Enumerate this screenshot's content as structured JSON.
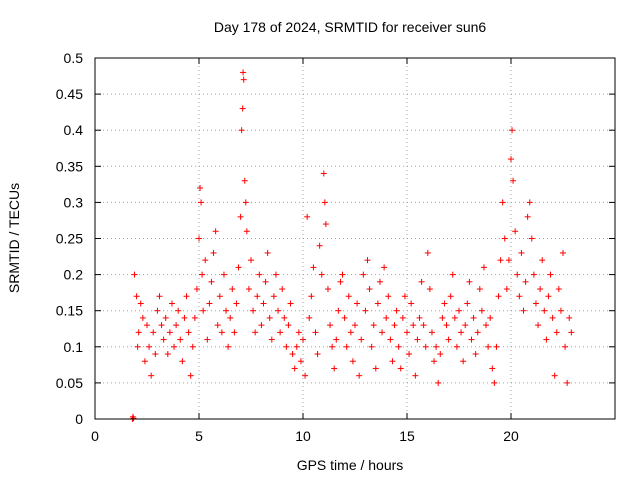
{
  "chart_data": {
    "type": "scatter",
    "title": "Day 178 of 2024, SRMTID for receiver sun6",
    "xlabel": "GPS time / hours",
    "ylabel": "SRMTID / TECUs",
    "xlim": [
      0,
      25
    ],
    "ylim": [
      0,
      0.5
    ],
    "xticks": [
      0,
      5,
      10,
      15,
      20
    ],
    "yticks": [
      0,
      0.05,
      0.1,
      0.15,
      0.2,
      0.25,
      0.3,
      0.35,
      0.4,
      0.45,
      0.5
    ],
    "xtick_labels": [
      "0",
      "5",
      "10",
      "15",
      "20"
    ],
    "ytick_labels": [
      "0",
      "0.05",
      "0.1",
      "0.15",
      "0.2",
      "0.25",
      "0.3",
      "0.35",
      "0.4",
      "0.45",
      "0.5"
    ],
    "grid": true,
    "series": [
      {
        "name": "SRMTID",
        "marker": "+",
        "color": "#ff0000",
        "points": [
          [
            1.8,
            0.0
          ],
          [
            1.82,
            0.003
          ],
          [
            1.85,
            0.001
          ],
          [
            1.9,
            0.2
          ],
          [
            2.0,
            0.17
          ],
          [
            2.05,
            0.1
          ],
          [
            2.1,
            0.12
          ],
          [
            2.2,
            0.16
          ],
          [
            2.3,
            0.14
          ],
          [
            2.4,
            0.08
          ],
          [
            2.5,
            0.13
          ],
          [
            2.6,
            0.1
          ],
          [
            2.7,
            0.06
          ],
          [
            2.8,
            0.12
          ],
          [
            2.9,
            0.09
          ],
          [
            3.0,
            0.15
          ],
          [
            3.1,
            0.17
          ],
          [
            3.2,
            0.13
          ],
          [
            3.3,
            0.11
          ],
          [
            3.4,
            0.14
          ],
          [
            3.5,
            0.09
          ],
          [
            3.6,
            0.12
          ],
          [
            3.7,
            0.16
          ],
          [
            3.8,
            0.1
          ],
          [
            3.9,
            0.13
          ],
          [
            4.0,
            0.15
          ],
          [
            4.1,
            0.11
          ],
          [
            4.2,
            0.08
          ],
          [
            4.3,
            0.14
          ],
          [
            4.4,
            0.17
          ],
          [
            4.5,
            0.12
          ],
          [
            4.6,
            0.06
          ],
          [
            4.7,
            0.1
          ],
          [
            4.8,
            0.14
          ],
          [
            4.9,
            0.18
          ],
          [
            5.0,
            0.25
          ],
          [
            5.05,
            0.32
          ],
          [
            5.1,
            0.3
          ],
          [
            5.15,
            0.2
          ],
          [
            5.2,
            0.15
          ],
          [
            5.3,
            0.22
          ],
          [
            5.4,
            0.11
          ],
          [
            5.5,
            0.16
          ],
          [
            5.6,
            0.19
          ],
          [
            5.7,
            0.23
          ],
          [
            5.8,
            0.26
          ],
          [
            5.9,
            0.13
          ],
          [
            6.0,
            0.17
          ],
          [
            6.1,
            0.12
          ],
          [
            6.2,
            0.2
          ],
          [
            6.3,
            0.15
          ],
          [
            6.4,
            0.1
          ],
          [
            6.5,
            0.14
          ],
          [
            6.6,
            0.18
          ],
          [
            6.7,
            0.12
          ],
          [
            6.8,
            0.16
          ],
          [
            6.9,
            0.21
          ],
          [
            7.0,
            0.28
          ],
          [
            7.05,
            0.4
          ],
          [
            7.1,
            0.43
          ],
          [
            7.12,
            0.48
          ],
          [
            7.15,
            0.47
          ],
          [
            7.2,
            0.33
          ],
          [
            7.25,
            0.3
          ],
          [
            7.3,
            0.26
          ],
          [
            7.4,
            0.18
          ],
          [
            7.5,
            0.22
          ],
          [
            7.6,
            0.15
          ],
          [
            7.7,
            0.12
          ],
          [
            7.8,
            0.17
          ],
          [
            7.9,
            0.2
          ],
          [
            8.0,
            0.13
          ],
          [
            8.1,
            0.16
          ],
          [
            8.2,
            0.19
          ],
          [
            8.3,
            0.23
          ],
          [
            8.4,
            0.14
          ],
          [
            8.5,
            0.11
          ],
          [
            8.6,
            0.17
          ],
          [
            8.7,
            0.2
          ],
          [
            8.8,
            0.15
          ],
          [
            8.9,
            0.12
          ],
          [
            9.0,
            0.18
          ],
          [
            9.1,
            0.14
          ],
          [
            9.2,
            0.1
          ],
          [
            9.3,
            0.13
          ],
          [
            9.4,
            0.16
          ],
          [
            9.5,
            0.09
          ],
          [
            9.6,
            0.07
          ],
          [
            9.7,
            0.1
          ],
          [
            9.8,
            0.12
          ],
          [
            9.9,
            0.08
          ],
          [
            10.0,
            0.11
          ],
          [
            10.1,
            0.06
          ],
          [
            10.2,
            0.28
          ],
          [
            10.3,
            0.14
          ],
          [
            10.4,
            0.17
          ],
          [
            10.5,
            0.21
          ],
          [
            10.6,
            0.12
          ],
          [
            10.7,
            0.09
          ],
          [
            10.8,
            0.24
          ],
          [
            10.9,
            0.2
          ],
          [
            11.0,
            0.34
          ],
          [
            11.05,
            0.3
          ],
          [
            11.1,
            0.27
          ],
          [
            11.2,
            0.18
          ],
          [
            11.3,
            0.13
          ],
          [
            11.4,
            0.1
          ],
          [
            11.5,
            0.07
          ],
          [
            11.6,
            0.11
          ],
          [
            11.7,
            0.15
          ],
          [
            11.8,
            0.19
          ],
          [
            11.9,
            0.2
          ],
          [
            12.0,
            0.14
          ],
          [
            12.1,
            0.1
          ],
          [
            12.2,
            0.17
          ],
          [
            12.3,
            0.12
          ],
          [
            12.4,
            0.08
          ],
          [
            12.5,
            0.13
          ],
          [
            12.6,
            0.16
          ],
          [
            12.7,
            0.06
          ],
          [
            12.8,
            0.11
          ],
          [
            12.9,
            0.2
          ],
          [
            13.0,
            0.15
          ],
          [
            13.1,
            0.22
          ],
          [
            13.2,
            0.18
          ],
          [
            13.3,
            0.1
          ],
          [
            13.4,
            0.13
          ],
          [
            13.5,
            0.07
          ],
          [
            13.6,
            0.16
          ],
          [
            13.7,
            0.19
          ],
          [
            13.8,
            0.12
          ],
          [
            13.9,
            0.21
          ],
          [
            14.0,
            0.14
          ],
          [
            14.1,
            0.17
          ],
          [
            14.2,
            0.11
          ],
          [
            14.3,
            0.08
          ],
          [
            14.4,
            0.13
          ],
          [
            14.5,
            0.15
          ],
          [
            14.6,
            0.1
          ],
          [
            14.7,
            0.07
          ],
          [
            14.8,
            0.14
          ],
          [
            14.9,
            0.17
          ],
          [
            15.0,
            0.12
          ],
          [
            15.1,
            0.09
          ],
          [
            15.2,
            0.16
          ],
          [
            15.3,
            0.13
          ],
          [
            15.4,
            0.06
          ],
          [
            15.5,
            0.11
          ],
          [
            15.6,
            0.14
          ],
          [
            15.7,
            0.19
          ],
          [
            15.8,
            0.13
          ],
          [
            15.9,
            0.1
          ],
          [
            16.0,
            0.23
          ],
          [
            16.1,
            0.18
          ],
          [
            16.2,
            0.12
          ],
          [
            16.3,
            0.08
          ],
          [
            16.4,
            0.1
          ],
          [
            16.5,
            0.05
          ],
          [
            16.6,
            0.09
          ],
          [
            16.7,
            0.14
          ],
          [
            16.8,
            0.16
          ],
          [
            16.9,
            0.13
          ],
          [
            17.0,
            0.11
          ],
          [
            17.1,
            0.17
          ],
          [
            17.2,
            0.2
          ],
          [
            17.3,
            0.14
          ],
          [
            17.4,
            0.1
          ],
          [
            17.5,
            0.15
          ],
          [
            17.6,
            0.12
          ],
          [
            17.7,
            0.08
          ],
          [
            17.8,
            0.13
          ],
          [
            17.9,
            0.16
          ],
          [
            18.0,
            0.19
          ],
          [
            18.1,
            0.11
          ],
          [
            18.2,
            0.14
          ],
          [
            18.3,
            0.09
          ],
          [
            18.4,
            0.12
          ],
          [
            18.5,
            0.18
          ],
          [
            18.6,
            0.15
          ],
          [
            18.7,
            0.21
          ],
          [
            18.8,
            0.13
          ],
          [
            18.9,
            0.1
          ],
          [
            19.0,
            0.14
          ],
          [
            19.1,
            0.07
          ],
          [
            19.2,
            0.05
          ],
          [
            19.3,
            0.1
          ],
          [
            19.4,
            0.17
          ],
          [
            19.5,
            0.22
          ],
          [
            19.6,
            0.3
          ],
          [
            19.7,
            0.25
          ],
          [
            19.8,
            0.18
          ],
          [
            19.9,
            0.22
          ],
          [
            20.0,
            0.36
          ],
          [
            20.05,
            0.4
          ],
          [
            20.1,
            0.33
          ],
          [
            20.2,
            0.26
          ],
          [
            20.3,
            0.2
          ],
          [
            20.4,
            0.17
          ],
          [
            20.5,
            0.23
          ],
          [
            20.6,
            0.15
          ],
          [
            20.7,
            0.19
          ],
          [
            20.8,
            0.28
          ],
          [
            20.9,
            0.3
          ],
          [
            21.0,
            0.25
          ],
          [
            21.1,
            0.2
          ],
          [
            21.2,
            0.16
          ],
          [
            21.3,
            0.13
          ],
          [
            21.4,
            0.18
          ],
          [
            21.5,
            0.22
          ],
          [
            21.6,
            0.15
          ],
          [
            21.7,
            0.11
          ],
          [
            21.8,
            0.17
          ],
          [
            21.9,
            0.2
          ],
          [
            22.0,
            0.14
          ],
          [
            22.1,
            0.06
          ],
          [
            22.2,
            0.12
          ],
          [
            22.3,
            0.18
          ],
          [
            22.4,
            0.15
          ],
          [
            22.5,
            0.23
          ],
          [
            22.6,
            0.1
          ],
          [
            22.7,
            0.05
          ],
          [
            22.8,
            0.14
          ],
          [
            22.9,
            0.12
          ]
        ]
      }
    ]
  }
}
